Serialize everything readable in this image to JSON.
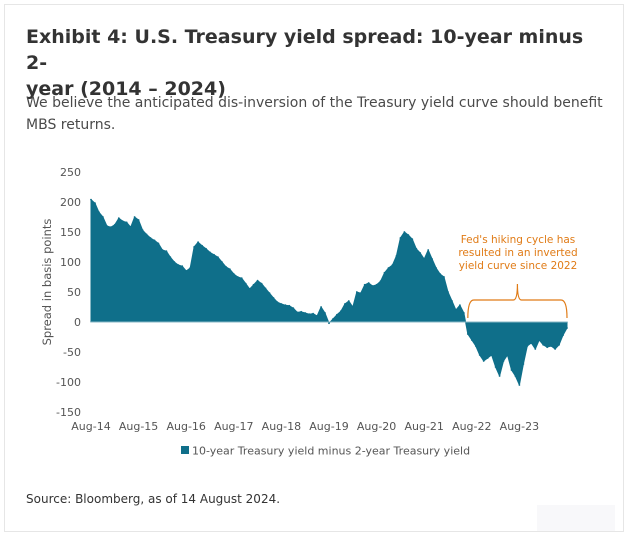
{
  "title": "Exhibit 4: U.S. Treasury yield spread: 10-year minus 2-year (2014 – 2024)",
  "title_line1": "Exhibit 4: U.S. Treasury yield spread: 10-year minus 2-",
  "title_line2": "year (2014 – 2024)",
  "subtitle_line1": "We believe the anticipated dis-inversion of the Treasury yield curve should benefit",
  "subtitle_line2": "MBS returns.",
  "source": "Source: Bloomberg, as of 14 August 2024.",
  "colors": {
    "series": "#0f6f8a",
    "annotation": "#e07b16",
    "text": "#333333",
    "axis": "#555555"
  },
  "chart_data": {
    "type": "area",
    "title": "",
    "xlabel": "",
    "ylabel": "Spread in basis points",
    "ylim": [
      -150,
      250
    ],
    "yticks": [
      250,
      200,
      150,
      100,
      50,
      0,
      -50,
      -100,
      -150
    ],
    "xticks": [
      "Aug-14",
      "Aug-15",
      "Aug-16",
      "Aug-17",
      "Aug-18",
      "Aug-19",
      "Aug-20",
      "Aug-21",
      "Aug-22",
      "Aug-23"
    ],
    "grid": false,
    "legend": "bottom",
    "annotation": {
      "lines": [
        "Fed's hiking cycle has",
        "resulted in an inverted",
        "yield curve since 2022"
      ],
      "from": "2022-07",
      "to": "2024-08"
    },
    "series": [
      {
        "name": "10-year Treasury yield minus 2-year Treasury yield",
        "x": [
          "2014-08",
          "2014-09",
          "2014-10",
          "2014-11",
          "2014-12",
          "2015-01",
          "2015-02",
          "2015-03",
          "2015-04",
          "2015-05",
          "2015-06",
          "2015-07",
          "2015-08",
          "2015-09",
          "2015-10",
          "2015-11",
          "2015-12",
          "2016-01",
          "2016-02",
          "2016-03",
          "2016-04",
          "2016-05",
          "2016-06",
          "2016-07",
          "2016-08",
          "2016-09",
          "2016-10",
          "2016-11",
          "2016-12",
          "2017-01",
          "2017-02",
          "2017-03",
          "2017-04",
          "2017-05",
          "2017-06",
          "2017-07",
          "2017-08",
          "2017-09",
          "2017-10",
          "2017-11",
          "2017-12",
          "2018-01",
          "2018-02",
          "2018-03",
          "2018-04",
          "2018-05",
          "2018-06",
          "2018-07",
          "2018-08",
          "2018-09",
          "2018-10",
          "2018-11",
          "2018-12",
          "2019-01",
          "2019-02",
          "2019-03",
          "2019-04",
          "2019-05",
          "2019-06",
          "2019-07",
          "2019-08",
          "2019-09",
          "2019-10",
          "2019-11",
          "2019-12",
          "2020-01",
          "2020-02",
          "2020-03",
          "2020-04",
          "2020-05",
          "2020-06",
          "2020-07",
          "2020-08",
          "2020-09",
          "2020-10",
          "2020-11",
          "2020-12",
          "2021-01",
          "2021-02",
          "2021-03",
          "2021-04",
          "2021-05",
          "2021-06",
          "2021-07",
          "2021-08",
          "2021-09",
          "2021-10",
          "2021-11",
          "2021-12",
          "2022-01",
          "2022-02",
          "2022-03",
          "2022-04",
          "2022-05",
          "2022-06",
          "2022-07",
          "2022-08",
          "2022-09",
          "2022-10",
          "2022-11",
          "2022-12",
          "2023-01",
          "2023-02",
          "2023-03",
          "2023-04",
          "2023-05",
          "2023-06",
          "2023-07",
          "2023-08",
          "2023-09",
          "2023-10",
          "2023-11",
          "2023-12",
          "2024-01",
          "2024-02",
          "2024-03",
          "2024-04",
          "2024-05",
          "2024-06",
          "2024-07",
          "2024-08"
        ],
        "values": [
          204,
          198,
          183,
          175,
          160,
          158,
          162,
          173,
          168,
          166,
          158,
          175,
          170,
          153,
          146,
          140,
          136,
          131,
          120,
          118,
          108,
          100,
          95,
          93,
          85,
          90,
          125,
          133,
          127,
          122,
          116,
          112,
          108,
          100,
          92,
          88,
          80,
          75,
          73,
          64,
          55,
          62,
          69,
          64,
          56,
          48,
          40,
          33,
          30,
          28,
          27,
          23,
          16,
          17,
          15,
          13,
          14,
          10,
          25,
          15,
          -2,
          5,
          12,
          18,
          30,
          35,
          25,
          50,
          48,
          62,
          65,
          60,
          62,
          68,
          82,
          90,
          95,
          110,
          140,
          150,
          145,
          138,
          122,
          115,
          105,
          120,
          105,
          90,
          80,
          75,
          50,
          35,
          20,
          28,
          15,
          -20,
          -30,
          -40,
          -55,
          -65,
          -60,
          -55,
          -75,
          -90,
          -65,
          -55,
          -80,
          -90,
          -105,
          -70,
          -40,
          -35,
          -45,
          -30,
          -38,
          -42,
          -40,
          -45,
          -38,
          -22,
          -10
        ]
      }
    ]
  }
}
